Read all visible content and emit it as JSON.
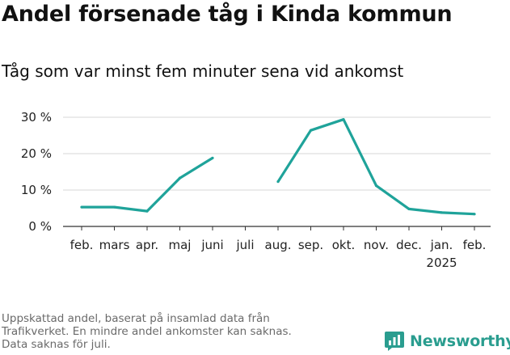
{
  "title": "Andel försenade tåg i Kinda kommun",
  "subtitle": "Tåg som var minst fem minuter sena vid ankomst",
  "footnote": [
    "Uppskattad andel, baserat på insamlad data från",
    "Trafikverket. En mindre andel ankomster kan saknas.",
    "Data saknas för juli."
  ],
  "brand": {
    "name": "Newsworthy",
    "icon": "newsworthy-logo-icon",
    "color": "#2a9d8f"
  },
  "chart_data": {
    "type": "line",
    "title": "Andel försenade tåg i Kinda kommun",
    "subtitle": "Tåg som var minst fem minuter sena vid ankomst",
    "categories": [
      "feb.",
      "mars",
      "apr.",
      "maj",
      "juni",
      "juli",
      "aug.",
      "sep.",
      "okt.",
      "nov.",
      "dec.",
      "jan.",
      "feb."
    ],
    "year_labels": [
      "",
      "",
      "",
      "",
      "",
      "",
      "",
      "",
      "",
      "",
      "",
      "2025",
      ""
    ],
    "values": [
      5.3,
      5.3,
      4.2,
      13.3,
      18.8,
      null,
      12.3,
      26.4,
      29.4,
      11.2,
      4.8,
      3.8,
      3.4
    ],
    "ylim": [
      0,
      30
    ],
    "yticks": [
      0,
      10,
      20,
      30
    ],
    "ytick_labels": [
      "0 %",
      "10 %",
      "20 %",
      "30 %"
    ],
    "grid": true,
    "line_color": "#1fa39a",
    "grid_color": "#d7d7d7",
    "axis_color": "#333333"
  }
}
